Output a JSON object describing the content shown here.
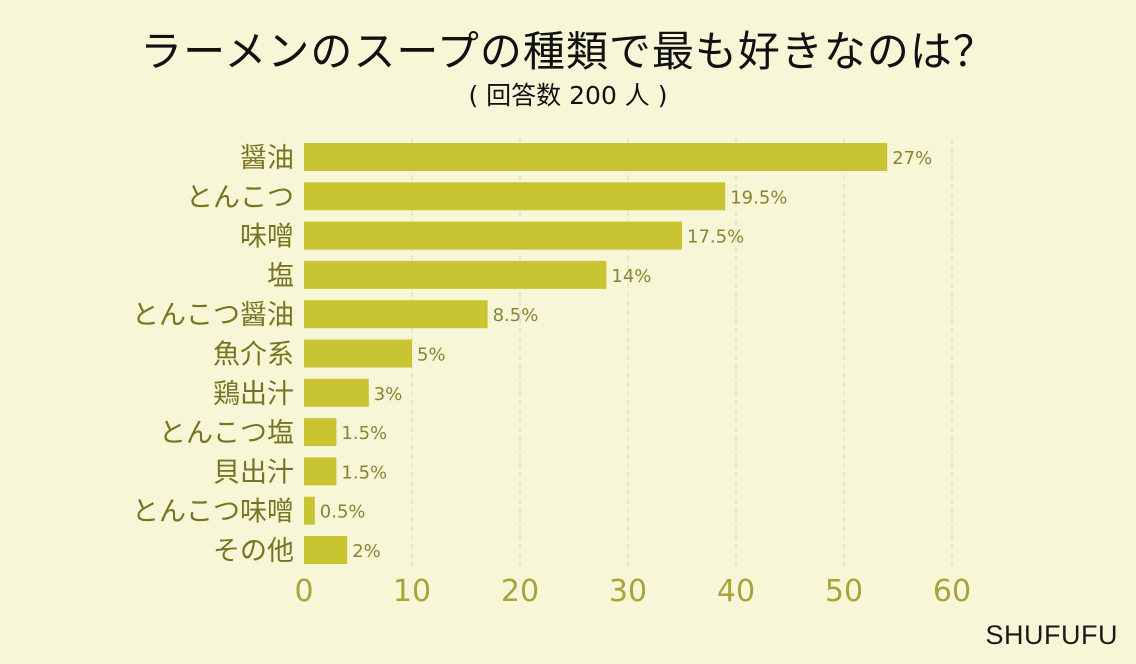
{
  "title": "ラーメンのスープの種類で最も好きなのは？",
  "subtitle": "( 回答数 200 人 )",
  "watermark": "SHUFUFU",
  "colors": {
    "background": "#f7f7d8",
    "bar": "#c9c431",
    "category_text": "#7a7420",
    "tick_text": "#a8a43a",
    "value_text": "#8a8430",
    "grid": "#d8d8c0"
  },
  "chart_data": {
    "type": "bar",
    "orientation": "horizontal",
    "categories": [
      "醤油",
      "とんこつ",
      "味噌",
      "塩",
      "とんこつ醤油",
      "魚介系",
      "鶏出汁",
      "とんこつ塩",
      "貝出汁",
      "とんこつ味噌",
      "その他"
    ],
    "values": [
      54,
      39,
      35,
      28,
      17,
      10,
      6,
      3,
      3,
      1,
      4
    ],
    "data_labels": [
      "27%",
      "19.5%",
      "17.5%",
      "14%",
      "8.5%",
      "5%",
      "3%",
      "1.5%",
      "1.5%",
      "0.5%",
      "2%"
    ],
    "xlim": [
      0,
      60
    ],
    "xticks": [
      0,
      10,
      20,
      30,
      40,
      50,
      60
    ],
    "xlabel": "",
    "ylabel": "",
    "grid": "vertical dashed"
  }
}
